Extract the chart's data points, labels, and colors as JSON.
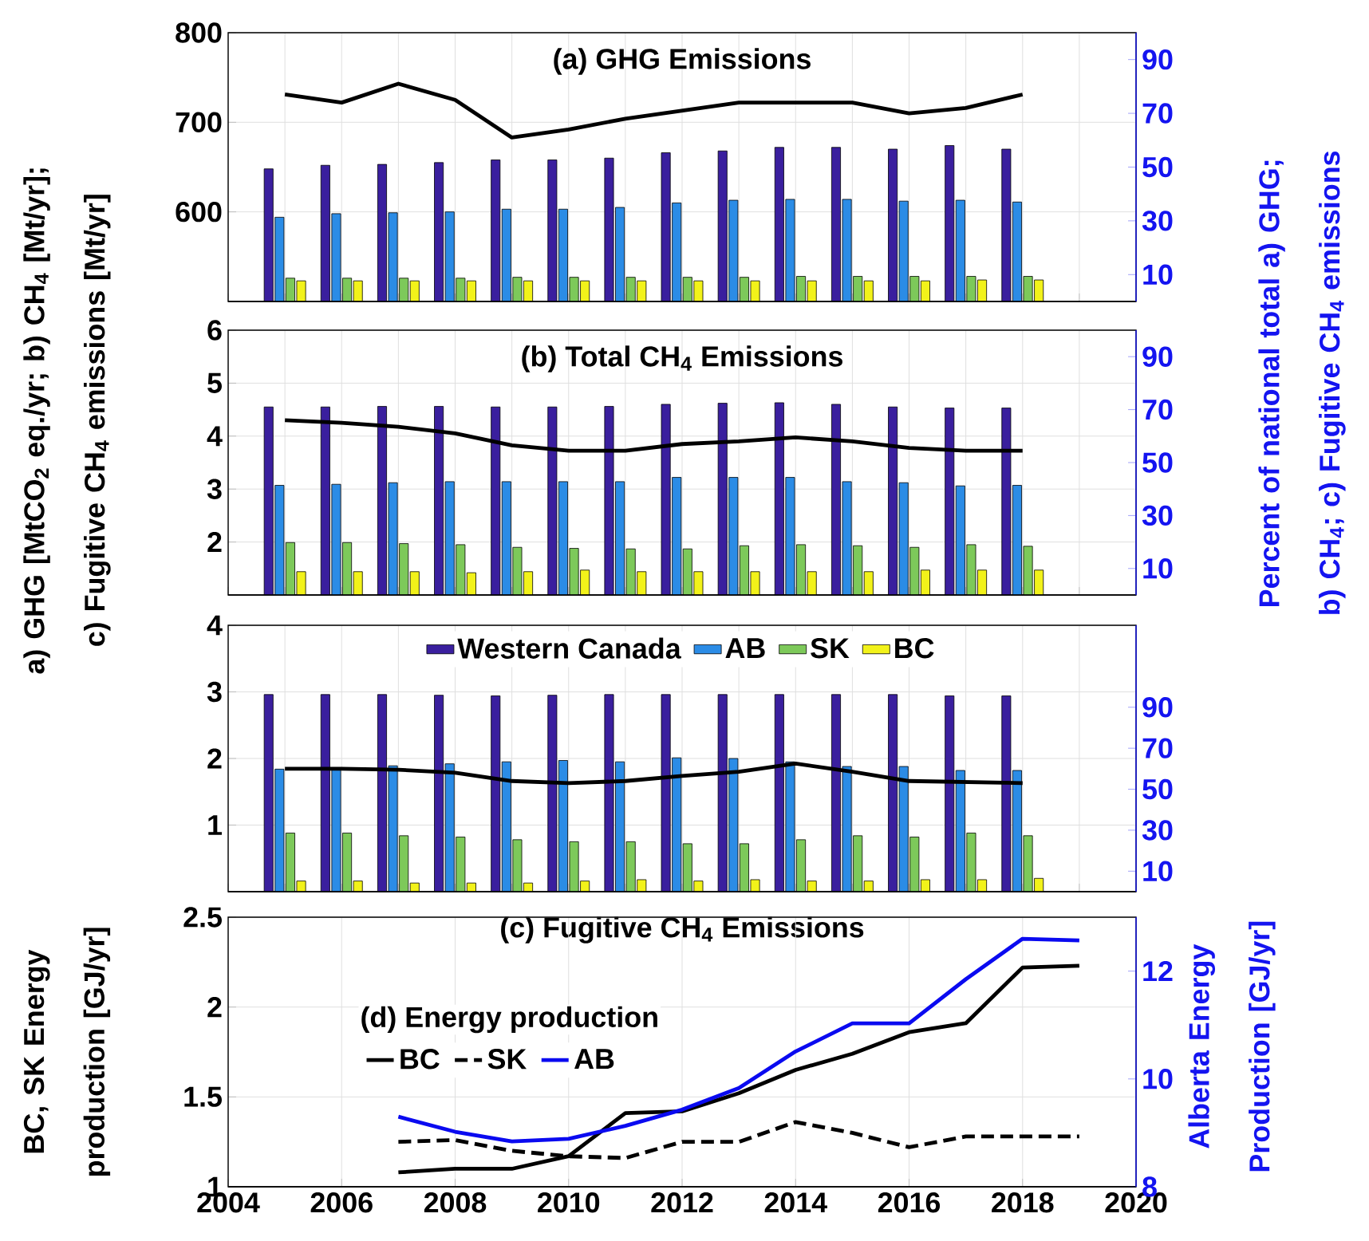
{
  "chart_data": [
    {
      "type": "bar",
      "title": "(a) GHG Emissions",
      "categories": [
        null,
        null,
        null,
        null,
        null,
        null,
        null,
        null,
        null,
        null,
        null,
        null,
        null,
        null
      ],
      "ylim": [
        500,
        800
      ],
      "yticks": [
        600,
        700,
        800
      ],
      "grid": true,
      "series": [
        {
          "color": "#3a1f9e",
          "values": [
            648,
            652,
            653,
            655,
            658,
            658,
            660,
            666,
            668,
            672,
            672,
            670,
            674,
            670
          ]
        },
        {
          "color": "#2b8ce6",
          "values": [
            594,
            598,
            599,
            600,
            603,
            603,
            605,
            610,
            613,
            614,
            614,
            612,
            613,
            611
          ]
        },
        {
          "color": "#7dc95a",
          "values": [
            526,
            526,
            526,
            526,
            527,
            527,
            527,
            527,
            527,
            528,
            528,
            528,
            528,
            528
          ]
        },
        {
          "color": "#f2f21a",
          "values": [
            523,
            523,
            523,
            523,
            523,
            523,
            523,
            523,
            523,
            523,
            523,
            523,
            524,
            524
          ]
        }
      ]
    },
    {
      "type": "line",
      "categories": [
        null,
        null,
        null,
        null,
        null,
        null,
        null,
        null,
        null,
        null,
        null,
        null,
        null,
        null
      ],
      "ylim": [
        0,
        100
      ],
      "yticks": [
        10,
        30,
        50,
        70,
        90
      ],
      "series": [
        {
          "color": "#000000",
          "values": [
            77,
            74,
            81,
            75,
            61,
            64,
            68,
            71,
            74,
            74,
            74,
            70,
            72,
            77
          ]
        }
      ]
    },
    {
      "type": "bar",
      "title": "(b) Total CH$_{4}$ Emissions",
      "ylabel": "a) GHG [MtCO$_{2}$ eq./yr; b) CH$_{4}$ [Mt/yr]; c) Fugitive CH$_{4}$ emissions [Mt/yr]",
      "categories": [
        null,
        null,
        null,
        null,
        null,
        null,
        null,
        null,
        null,
        null,
        null,
        null,
        null,
        null
      ],
      "ylim": [
        1,
        6
      ],
      "yticks": [
        2,
        3,
        4,
        5,
        6
      ],
      "grid": true,
      "series": [
        {
          "color": "#3a1f9e",
          "values": [
            4.55,
            4.55,
            4.56,
            4.56,
            4.55,
            4.55,
            4.56,
            4.6,
            4.62,
            4.63,
            4.6,
            4.55,
            4.53,
            4.53
          ]
        },
        {
          "color": "#2b8ce6",
          "values": [
            3.07,
            3.09,
            3.12,
            3.14,
            3.14,
            3.14,
            3.14,
            3.22,
            3.22,
            3.22,
            3.14,
            3.12,
            3.06,
            3.07
          ]
        },
        {
          "color": "#7dc95a",
          "values": [
            1.99,
            1.99,
            1.97,
            1.95,
            1.9,
            1.88,
            1.87,
            1.87,
            1.93,
            1.95,
            1.93,
            1.9,
            1.95,
            1.92
          ]
        },
        {
          "color": "#f2f21a",
          "values": [
            1.44,
            1.44,
            1.44,
            1.42,
            1.44,
            1.47,
            1.44,
            1.44,
            1.44,
            1.44,
            1.44,
            1.47,
            1.47,
            1.47
          ]
        }
      ]
    },
    {
      "type": "line",
      "ylabel": "Percent of national total a) GHG; b) CH$_{4}$; c) Fugitive CH$_{4}$ emissions",
      "categories": [
        null,
        null,
        null,
        null,
        null,
        null,
        null,
        null,
        null,
        null,
        null,
        null,
        null,
        null
      ],
      "ylim": [
        0,
        100
      ],
      "yticks": [
        10,
        30,
        50,
        70,
        90
      ],
      "series": [
        {
          "color": "#000000",
          "values": [
            66,
            65,
            63.5,
            61,
            56.5,
            54.5,
            54.5,
            57,
            58,
            59.5,
            58,
            55.5,
            54.5,
            54.5
          ]
        }
      ]
    },
    {
      "type": "bar",
      "xlabel": "(c) Fugitive CH$_{4}$ Emissions",
      "legend": "top",
      "categories": [
        null,
        null,
        null,
        null,
        null,
        null,
        null,
        null,
        null,
        null,
        null,
        null,
        null,
        null
      ],
      "ylim": [
        0,
        4
      ],
      "yticks": [
        1,
        2,
        3,
        4
      ],
      "grid": true,
      "series": [
        {
          "name": "Western Canada",
          "color": "#3a1f9e",
          "values": [
            2.96,
            2.96,
            2.96,
            2.95,
            2.94,
            2.95,
            2.96,
            2.96,
            2.96,
            2.96,
            2.96,
            2.96,
            2.94,
            2.94
          ]
        },
        {
          "name": "AB",
          "color": "#2b8ce6",
          "values": [
            1.84,
            1.84,
            1.89,
            1.92,
            1.95,
            1.97,
            1.95,
            2.01,
            2.0,
            1.95,
            1.88,
            1.88,
            1.82,
            1.82
          ]
        },
        {
          "name": "SK",
          "color": "#7dc95a",
          "values": [
            0.88,
            0.88,
            0.84,
            0.82,
            0.78,
            0.75,
            0.75,
            0.72,
            0.72,
            0.78,
            0.84,
            0.82,
            0.88,
            0.84
          ]
        },
        {
          "name": "BC",
          "color": "#f2f21a",
          "values": [
            0.16,
            0.16,
            0.13,
            0.13,
            0.13,
            0.16,
            0.18,
            0.16,
            0.18,
            0.16,
            0.16,
            0.18,
            0.18,
            0.2
          ]
        }
      ]
    },
    {
      "type": "line",
      "categories": [
        null,
        null,
        null,
        null,
        null,
        null,
        null,
        null,
        null,
        null,
        null,
        null,
        null,
        null
      ],
      "ylim": [
        0,
        130
      ],
      "yticks": [
        10,
        30,
        50,
        70,
        90
      ],
      "series": [
        {
          "color": "#000000",
          "values": [
            60,
            60,
            59.5,
            58,
            54,
            53,
            54,
            56.5,
            58.5,
            62.5,
            58.5,
            54,
            53.5,
            53
          ]
        }
      ]
    },
    {
      "type": "line",
      "ylabel": "BC, SK Energy production [GJ/yr]",
      "y2label": "Alberta Energy Production [GJ/yr]",
      "legend": "left",
      "legend_title": "(d) Energy production",
      "x": [
        2007,
        2008,
        2009,
        2010,
        2011,
        2012,
        2013,
        2014,
        2015,
        2016,
        2017,
        2018,
        2019
      ],
      "xlim": [
        2004,
        2020
      ],
      "xticks": [
        2004,
        2006,
        2008,
        2010,
        2012,
        2014,
        2016,
        2018,
        2020
      ],
      "ylim": [
        1,
        2.5
      ],
      "yticks": [
        1,
        1.5,
        2,
        2.5
      ],
      "y2lim": [
        8,
        13
      ],
      "y2ticks": [
        8,
        10,
        12
      ],
      "grid": true,
      "series": [
        {
          "name": "BC",
          "color": "#000000",
          "line_style": "solid",
          "values": [
            1.08,
            1.1,
            1.1,
            1.17,
            1.41,
            1.42,
            1.52,
            1.65,
            1.74,
            1.86,
            1.91,
            2.22,
            2.23
          ]
        },
        {
          "name": "SK",
          "color": "#000000",
          "line_style": "dashed",
          "values": [
            1.25,
            1.26,
            1.2,
            1.17,
            1.16,
            1.25,
            1.25,
            1.36,
            1.3,
            1.22,
            1.28,
            1.28,
            1.28
          ]
        },
        {
          "name": "AB",
          "color": "#0a0af0",
          "line_style": "solid",
          "axis": "y2",
          "values": [
            9.3,
            9.02,
            8.84,
            8.89,
            9.13,
            9.43,
            9.83,
            10.51,
            11.03,
            11.03,
            11.85,
            12.6,
            12.57
          ]
        }
      ]
    }
  ]
}
